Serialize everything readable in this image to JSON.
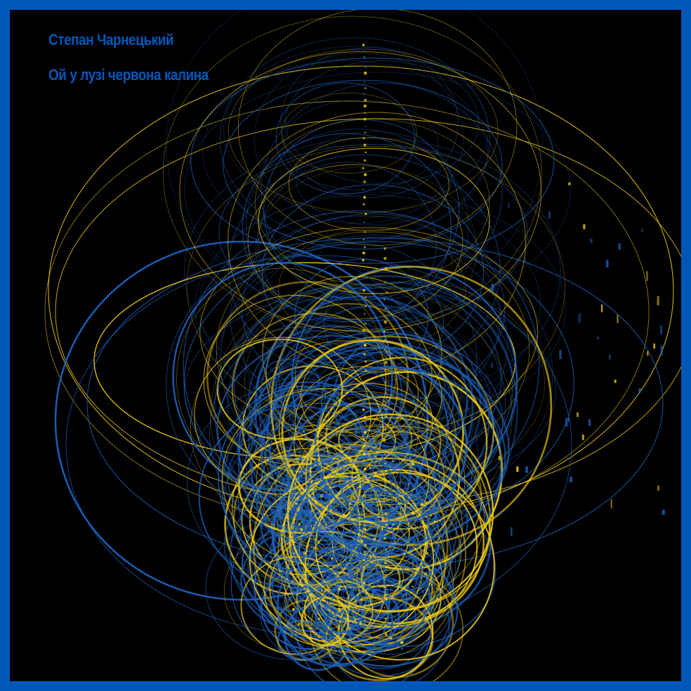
{
  "artist": "Степан Чарнецький",
  "title": "Ой у лузі червона калина",
  "colors": {
    "frame": "#0057b8",
    "background": "#000000",
    "text": "#0057b8",
    "blue": "#1c5fb8",
    "yellow": "#f2cd14"
  }
}
